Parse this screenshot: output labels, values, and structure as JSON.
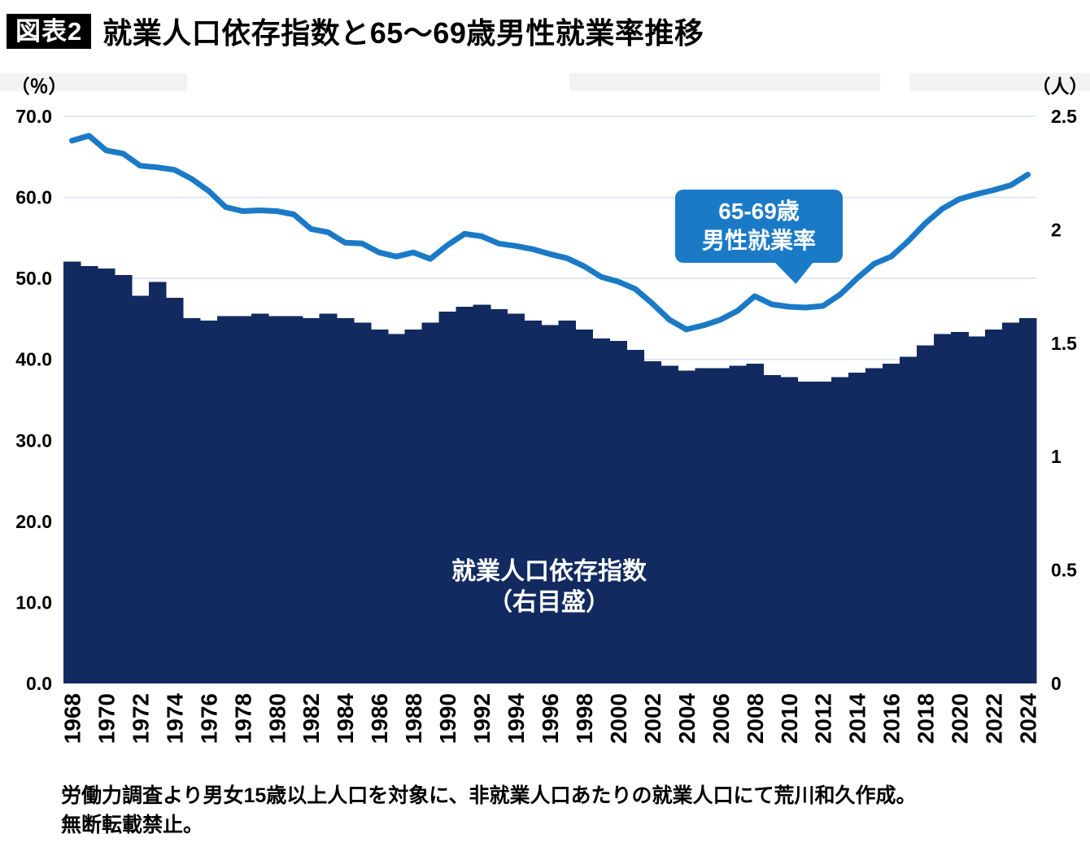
{
  "header": {
    "tag": "図表2",
    "title": "就業人口依存指数と65～69歳男性就業率推移"
  },
  "footer": {
    "line1": "労働力調査より男女15歳以上人口を対象に、非就業人口あたりの就業人口にて荒川和久作成。",
    "line2": "無断転載禁止。"
  },
  "chart_data": {
    "type": "combo",
    "x": [
      1968,
      1969,
      1970,
      1971,
      1972,
      1973,
      1974,
      1975,
      1976,
      1977,
      1978,
      1979,
      1980,
      1981,
      1982,
      1983,
      1984,
      1985,
      1986,
      1987,
      1988,
      1989,
      1990,
      1991,
      1992,
      1993,
      1994,
      1995,
      1996,
      1997,
      1998,
      1999,
      2000,
      2001,
      2002,
      2003,
      2004,
      2005,
      2006,
      2007,
      2008,
      2009,
      2010,
      2011,
      2012,
      2013,
      2014,
      2015,
      2016,
      2017,
      2018,
      2019,
      2020,
      2021,
      2022,
      2023,
      2024
    ],
    "x_tick_step": 2,
    "series": [
      {
        "name": "65-69歳男性就業率",
        "type": "line",
        "axis": "left",
        "color": "#1b7ac6",
        "values": [
          67.0,
          67.6,
          65.8,
          65.4,
          63.9,
          63.7,
          63.4,
          62.3,
          60.8,
          58.8,
          58.3,
          58.4,
          58.3,
          57.9,
          56.1,
          55.7,
          54.4,
          54.3,
          53.2,
          52.7,
          53.2,
          52.4,
          54.1,
          55.5,
          55.2,
          54.3,
          54.0,
          53.6,
          53.0,
          52.5,
          51.5,
          50.2,
          49.6,
          48.7,
          46.9,
          44.9,
          43.7,
          44.2,
          44.9,
          46.0,
          47.8,
          46.8,
          46.5,
          46.4,
          46.6,
          48.0,
          50.0,
          51.8,
          52.7,
          54.6,
          56.8,
          58.6,
          59.8,
          60.4,
          60.9,
          61.5,
          62.8
        ]
      },
      {
        "name": "就業人口依存指数（右目盛）",
        "type": "area",
        "axis": "right",
        "color": "#122a60",
        "values": [
          1.86,
          1.84,
          1.83,
          1.8,
          1.71,
          1.77,
          1.7,
          1.61,
          1.6,
          1.62,
          1.62,
          1.63,
          1.62,
          1.62,
          1.61,
          1.63,
          1.61,
          1.59,
          1.56,
          1.54,
          1.56,
          1.59,
          1.64,
          1.66,
          1.67,
          1.65,
          1.63,
          1.6,
          1.58,
          1.6,
          1.56,
          1.52,
          1.51,
          1.47,
          1.42,
          1.4,
          1.38,
          1.39,
          1.39,
          1.4,
          1.41,
          1.36,
          1.35,
          1.33,
          1.33,
          1.35,
          1.37,
          1.39,
          1.41,
          1.44,
          1.49,
          1.54,
          1.55,
          1.53,
          1.56,
          1.59,
          1.61
        ]
      }
    ],
    "left_axis": {
      "unit_label": "（％）",
      "range": [
        0,
        70
      ],
      "tick_interval": 10,
      "tick_labels": [
        "0.0",
        "10.0",
        "20.0",
        "30.0",
        "40.0",
        "50.0",
        "60.0",
        "70.0"
      ]
    },
    "right_axis": {
      "unit_label": "（人）",
      "range": [
        0,
        2.5
      ],
      "tick_interval": 0.5,
      "tick_labels": [
        "0",
        "0.5",
        "1",
        "1.5",
        "2",
        "2.5"
      ]
    },
    "grid": true,
    "legend_position": "in-chart-annotations",
    "annotations": {
      "line_callout": {
        "line1": "65-69歳",
        "line2": "男性就業率"
      },
      "area_label": {
        "line1": "就業人口依存指数",
        "line2": "（右目盛）"
      }
    },
    "colors": {
      "line": "#1b7ac6",
      "area": "#122a60",
      "grid": "#d9e2f0",
      "callout_bg": "#1b7ac6",
      "strip": "#f2f2f2"
    }
  }
}
